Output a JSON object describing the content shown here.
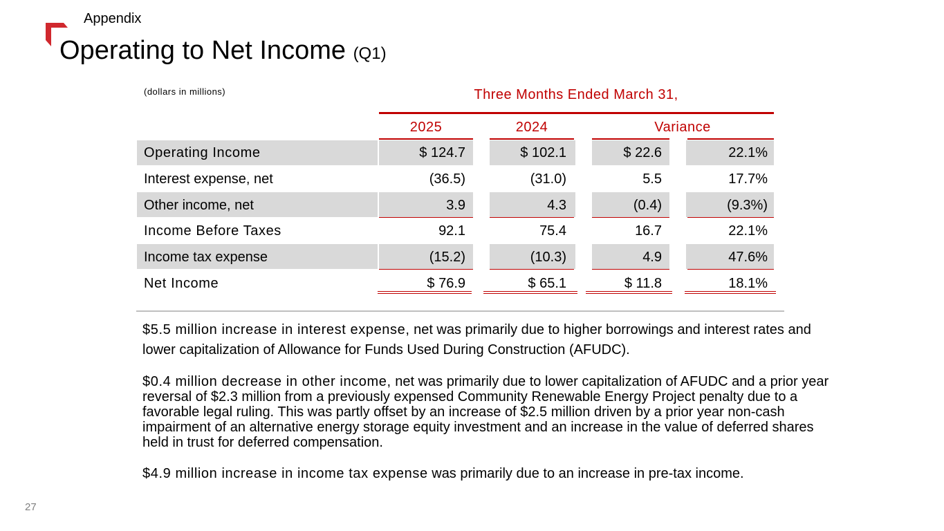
{
  "header": {
    "section": "Appendix",
    "title": "Operating to Net Income",
    "title_suffix": "(Q1)"
  },
  "table": {
    "units_note": "(dollars in millions)",
    "period_header": "Three Months Ended March 31,",
    "columns": [
      "2025",
      "2024",
      "Variance"
    ],
    "rows": [
      {
        "label": "Operating Income",
        "c2025": "$ 124.7",
        "c2024": "$ 102.1",
        "var_amt": "$ 22.6",
        "var_pct": "22.1%"
      },
      {
        "label": "Interest expense, net",
        "c2025": "(36.5)",
        "c2024": "(31.0)",
        "var_amt": "5.5",
        "var_pct": "17.7%"
      },
      {
        "label": "Other income, net",
        "c2025": "3.9",
        "c2024": "4.3",
        "var_amt": "(0.4)",
        "var_pct": "(9.3%)"
      },
      {
        "label": "Income Before Taxes",
        "c2025": "92.1",
        "c2024": "75.4",
        "var_amt": "16.7",
        "var_pct": "22.1%"
      },
      {
        "label": "Income tax expense",
        "c2025": "(15.2)",
        "c2024": "(10.3)",
        "var_amt": "4.9",
        "var_pct": "47.6%"
      },
      {
        "label": "Net Income",
        "c2025": "$ 76.9",
        "c2024": "$ 65.1",
        "var_amt": "$ 11.8",
        "var_pct": "18.1%"
      }
    ]
  },
  "notes": [
    {
      "lead": "$5.5 million increase in interest expense,",
      "text": " net was primarily due to higher borrowings and interest rates and lower capitalization of Allowance for Funds Used During Construction (AFUDC)."
    },
    {
      "lead": "$0.4 million decrease in other income,",
      "text": " net was primarily due to lower capitalization of AFUDC and a prior year reversal of $2.3 million from a previously expensed Community Renewable Energy Project penalty due to a favorable legal ruling. This was partly offset by an increase of $2.5 million driven by a prior year non-cash impairment of an alternative energy storage equity investment and an increase in the value of deferred shares held in trust for deferred compensation."
    },
    {
      "lead": "$4.9 million increase in income tax expense",
      "text": " was primarily due to an increase in pre-tax income."
    }
  ],
  "footer": {
    "page_number": "27"
  },
  "colors": {
    "accent": "#c00000",
    "band": "#d9d9d9",
    "logo": "#d0282e"
  }
}
